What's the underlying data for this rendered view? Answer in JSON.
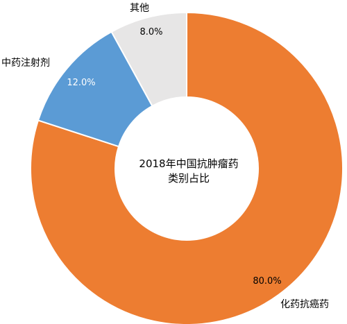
{
  "chart_data": {
    "type": "pie",
    "donut": true,
    "center_title": [
      "2018年中国抗肿瘤药",
      "类别占比"
    ],
    "categories": [
      "化药抗癌药",
      "中药注射剂",
      "其他"
    ],
    "values": [
      80.0,
      12.0,
      8.0
    ],
    "value_labels": [
      "80.0%",
      "12.0%",
      "8.0%"
    ],
    "colors": [
      "#ED7D31",
      "#5B9BD5",
      "#E7E6E6"
    ],
    "start_angle_deg": 0,
    "direction": "clockwise",
    "legend": "none"
  }
}
